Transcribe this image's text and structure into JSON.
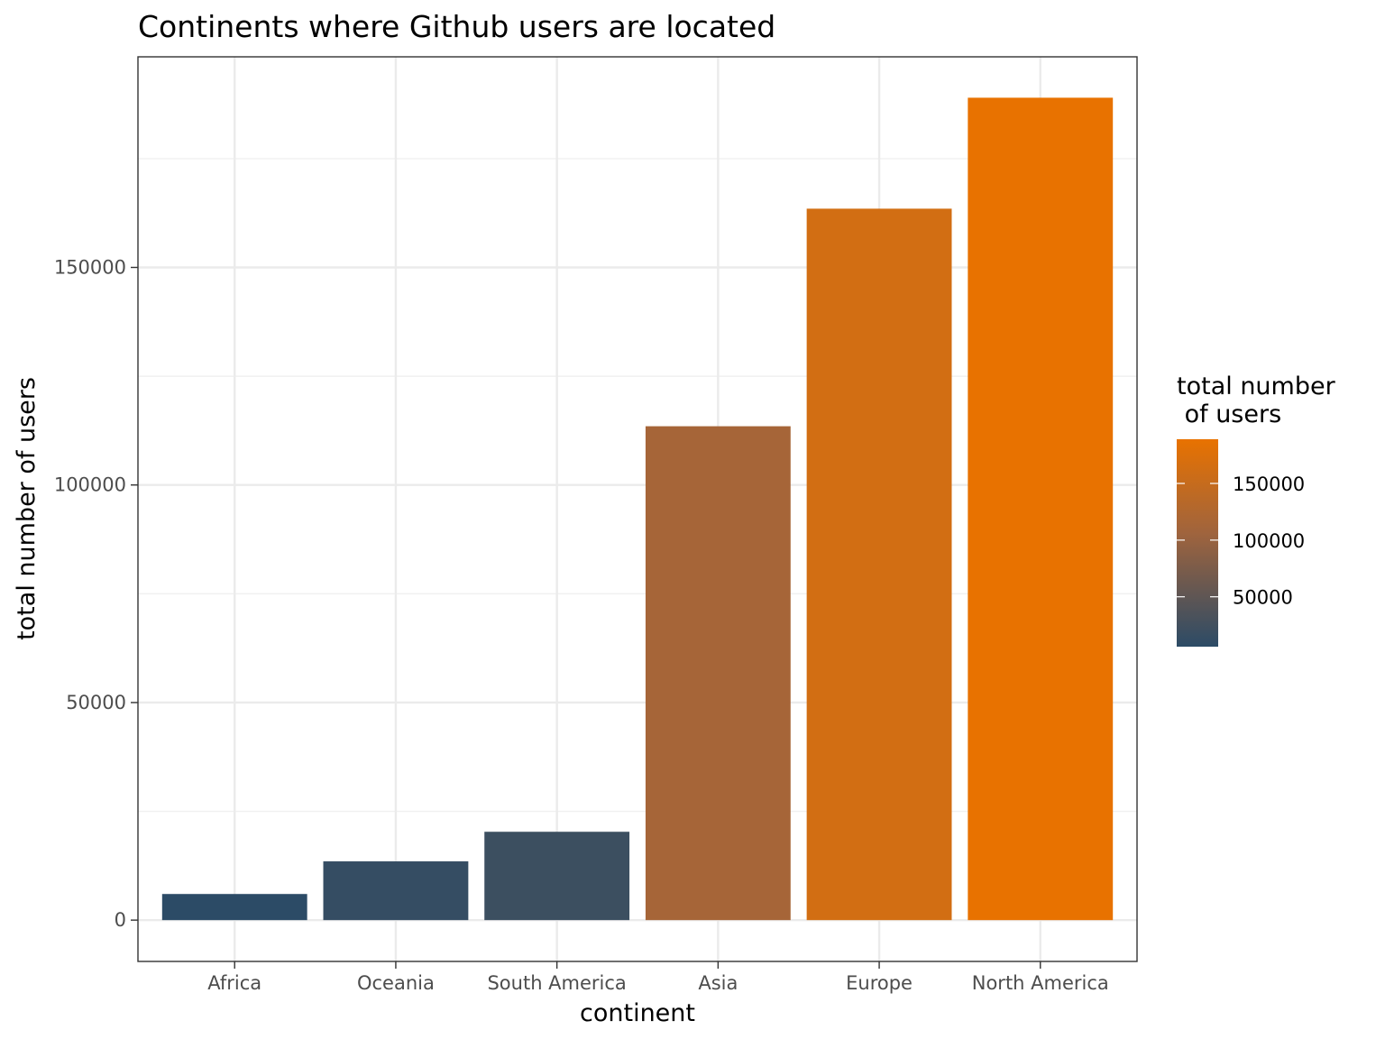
{
  "chart_data": {
    "type": "bar",
    "title": "Continents where Github users are located",
    "xlabel": "continent",
    "ylabel": "total number of users",
    "categories": [
      "Africa",
      "Oceania",
      "South America",
      "Asia",
      "Europe",
      "North America"
    ],
    "values": [
      6000,
      13500,
      20300,
      113500,
      163500,
      189000
    ],
    "ylim": [
      -9500,
      198400
    ],
    "yticks": [
      0,
      50000,
      100000,
      150000
    ],
    "ytick_labels": [
      "0",
      "50000",
      "100000",
      "150000"
    ],
    "grid": true,
    "legend": {
      "title_line1": "total number",
      "title_line2": " of users",
      "placement": "right",
      "scale_range": [
        6000,
        189000
      ],
      "ticks": [
        50000,
        100000,
        150000
      ],
      "tick_labels": [
        "50000",
        "100000",
        "150000"
      ],
      "low_color": "#2c4b66",
      "mid_color": "#a0643d",
      "high_color": "#e87200"
    }
  }
}
